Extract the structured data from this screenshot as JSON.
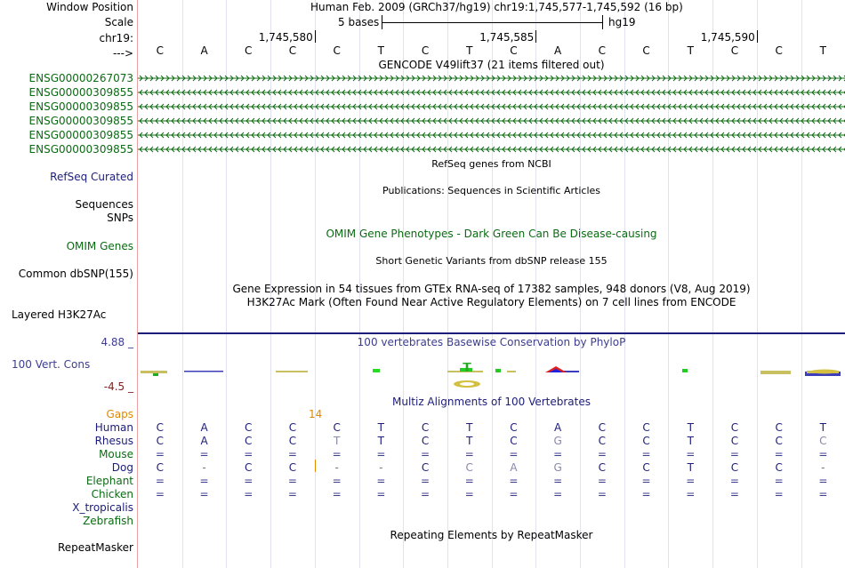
{
  "header": {
    "window_position_label": "Window Position",
    "window_position_value": "Human Feb. 2009 (GRCh37/hg19)   chr19:1,745,577-1,745,592 (16 bp)",
    "scale_label": "Scale",
    "scale_value": "5 bases",
    "scale_assembly": "hg19",
    "chrom_label": "chr19:",
    "strand_label": "--->",
    "ruler_positions": [
      "1,745,580",
      "1,745,585",
      "1,745,590"
    ]
  },
  "sequence": [
    "C",
    "A",
    "C",
    "C",
    "C",
    "T",
    "C",
    "T",
    "C",
    "A",
    "C",
    "C",
    "T",
    "C",
    "C",
    "T"
  ],
  "gencode": {
    "title": "GENCODE V49lift37 (21 items filtered out)",
    "genes": [
      {
        "name": "ENSG00000267073",
        "strand": "+"
      },
      {
        "name": "ENSG00000309855",
        "strand": "-"
      },
      {
        "name": "ENSG00000309855",
        "strand": "-"
      },
      {
        "name": "ENSG00000309855",
        "strand": "-"
      },
      {
        "name": "ENSG00000309855",
        "strand": "-"
      },
      {
        "name": "ENSG00000309855",
        "strand": "-"
      }
    ],
    "color": "#0b6b12"
  },
  "tracks": {
    "refseq_title": "RefSeq genes from NCBI",
    "refseq_label": "RefSeq Curated",
    "publications_title": "Publications: Sequences in Scientific Articles",
    "sequences_label": "Sequences",
    "snps_label": "SNPs",
    "omim_title": "OMIM Gene Phenotypes - Dark Green Can Be Disease-causing",
    "omim_label": "OMIM Genes",
    "dbsnp_title": "Short Genetic Variants from dbSNP release 155",
    "dbsnp_label": "Common dbSNP(155)",
    "gtex_title": "Gene Expression in 54 tissues from GTEx RNA-seq of 17382 samples, 948 donors (V8, Aug 2019)",
    "h3k27ac_title": "H3K27Ac Mark (Often Found Near Active Regulatory Elements) on 7 cell lines from ENCODE",
    "h3k27ac_label": "Layered H3K27Ac",
    "phylop_title": "100 vertebrates Basewise Conservation by PhyloP",
    "phylop_max": "4.88 _",
    "phylop_label": "100 Vert. Cons",
    "phylop_min": "-4.5 _",
    "multiz_title": "Multiz Alignments of 100 Vertebrates",
    "gaps_label": "Gaps",
    "gaps_value": "14",
    "repeatmasker_title": "Repeating Elements by RepeatMasker",
    "repeatmasker_label": "RepeatMasker"
  },
  "alignment": [
    {
      "species": "Human",
      "color": "#1c1c7a",
      "bases": [
        "C",
        "A",
        "C",
        "C",
        "C",
        "T",
        "C",
        "T",
        "C",
        "A",
        "C",
        "C",
        "T",
        "C",
        "C",
        "T"
      ]
    },
    {
      "species": "Rhesus",
      "color": "#1c1c7a",
      "bases": [
        "C",
        "A",
        "C",
        "C",
        "T",
        "T",
        "C",
        "T",
        "C",
        "G",
        "C",
        "C",
        "T",
        "C",
        "C",
        "C"
      ]
    },
    {
      "species": "Mouse",
      "color": "#0b6b12",
      "bases": [
        "=",
        "=",
        "=",
        "=",
        "=",
        "=",
        "=",
        "=",
        "=",
        "=",
        "=",
        "=",
        "=",
        "=",
        "=",
        "="
      ]
    },
    {
      "species": "Dog",
      "color": "#1c1c7a",
      "bases": [
        "C",
        "-",
        "C",
        "C",
        "-",
        "-",
        "C",
        "C",
        "A",
        "G",
        "C",
        "C",
        "T",
        "C",
        "C",
        "-"
      ]
    },
    {
      "species": "Elephant",
      "color": "#0b6b12",
      "bases": [
        "=",
        "=",
        "=",
        "=",
        "=",
        "=",
        "=",
        "=",
        "=",
        "=",
        "=",
        "=",
        "=",
        "=",
        "=",
        "="
      ]
    },
    {
      "species": "Chicken",
      "color": "#0b6b12",
      "bases": [
        "=",
        "=",
        "=",
        "=",
        "=",
        "=",
        "=",
        "=",
        "=",
        "=",
        "=",
        "=",
        "=",
        "=",
        "=",
        "="
      ]
    },
    {
      "species": "X_tropicalis",
      "color": "#1c1c7a",
      "bases": []
    },
    {
      "species": "Zebrafish",
      "color": "#0b6b12",
      "bases": []
    }
  ],
  "colors": {
    "divider": "#e8a0a0",
    "grid": "#e2e2ee",
    "phylop_text": "#3d3d8f",
    "phylop_min": "#7a1f1f",
    "gaps": "#e08a00",
    "navy": "#1c1c7a",
    "green": "#0b6b12"
  }
}
